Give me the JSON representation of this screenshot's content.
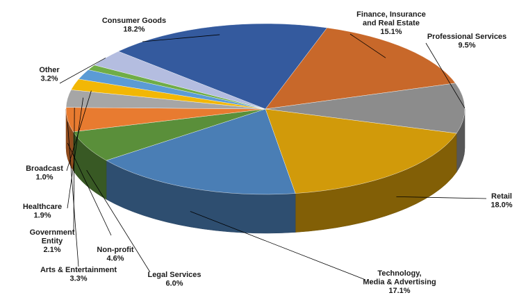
{
  "chart_data": {
    "type": "pie",
    "style": "3d",
    "slices": [
      {
        "name": "Finance, Insurance and Real Estate",
        "lines": [
          "Finance, Insurance",
          "and Real Estate"
        ],
        "value": 15.1,
        "pct_text": "15.1%",
        "color": "#c8682a"
      },
      {
        "name": "Professional Services",
        "lines": [
          "Professional Services"
        ],
        "value": 9.5,
        "pct_text": "9.5%",
        "color": "#8c8c8c"
      },
      {
        "name": "Retail",
        "lines": [
          "Retail"
        ],
        "value": 18.0,
        "pct_text": "18.0%",
        "color": "#d19a0a"
      },
      {
        "name": "Technology, Media & Advertising",
        "lines": [
          "Technology,",
          "Media & Advertising"
        ],
        "value": 17.1,
        "pct_text": "17.1%",
        "color": "#4a7eb5"
      },
      {
        "name": "Legal Services",
        "lines": [
          "Legal Services"
        ],
        "value": 6.0,
        "pct_text": "6.0%",
        "color": "#5a8f3a"
      },
      {
        "name": "Non-profit",
        "lines": [
          "Non-profit"
        ],
        "value": 4.6,
        "pct_text": "4.6%",
        "color": "#e87b30"
      },
      {
        "name": "Arts & Entertainment",
        "lines": [
          "Arts & Entertainment"
        ],
        "value": 3.3,
        "pct_text": "3.3%",
        "color": "#a6a6a6"
      },
      {
        "name": "Government Entity",
        "lines": [
          "Government",
          "Entity"
        ],
        "value": 2.1,
        "pct_text": "2.1%",
        "color": "#f2b705"
      },
      {
        "name": "Healthcare",
        "lines": [
          "Healthcare"
        ],
        "value": 1.9,
        "pct_text": "1.9%",
        "color": "#5b9bd5"
      },
      {
        "name": "Broadcast",
        "lines": [
          "Broadcast"
        ],
        "value": 1.0,
        "pct_text": "1.0%",
        "color": "#70ad47"
      },
      {
        "name": "Other",
        "lines": [
          "Other"
        ],
        "value": 3.2,
        "pct_text": "3.2%",
        "color": "#b4bde0"
      },
      {
        "name": "Consumer Goods",
        "lines": [
          "Consumer Goods"
        ],
        "value": 18.2,
        "pct_text": "18.2%",
        "color": "#345a9e"
      }
    ],
    "title": "",
    "legend": "none",
    "labels": "outside-with-leader-lines"
  }
}
